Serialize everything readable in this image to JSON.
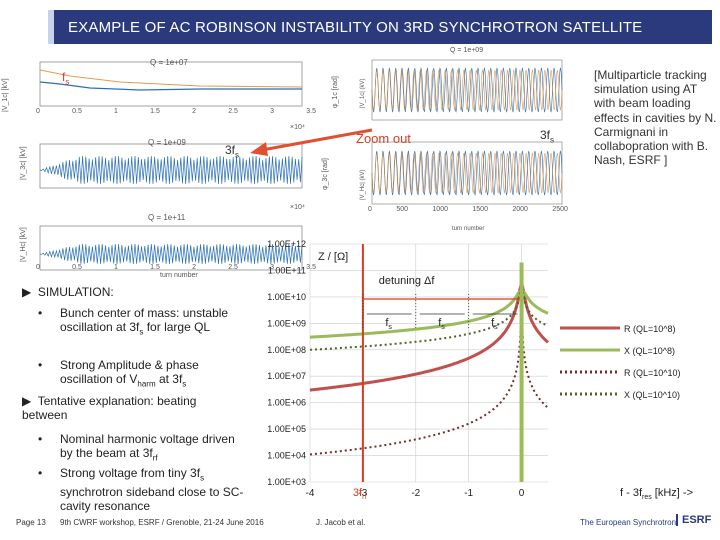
{
  "slide": {
    "title": "EXAMPLE OF AC ROBINSON INSTABILITY ON 3RD SYNCHROTRON SATELLITE",
    "note": "[Multiparticle tracking simulation using AT with beam loading effects in cavities by N. Carmignani in collabopration with B. Nash, ESRF ]",
    "zoom_out": "Zoom out",
    "three_fs_a": "3f",
    "three_fs_b": "3f",
    "fs_top": "f",
    "sub_s": "s"
  },
  "plots": {
    "p1_title": "Q = 1e+07",
    "p2_title": "Q = 1e+09",
    "p3_title": "Q = 1e+11",
    "zoom_title": "Q = 1e+09",
    "xlabel": "turn number",
    "zoom_xlabel": "turn number",
    "p1_ylabel": "|V_1c| [kV]",
    "p2_ylabel": "|V_3c| [kV]",
    "p3_ylabel": "|V_Hc| [kV]",
    "p1_rylabel": "φ_1c [rad]",
    "p2_rylabel": "φ_3c [rad]",
    "exp4": "×10⁴",
    "zoom_ylabel_top": "|V_1c| (kV)",
    "zoom_ylabel_bot": "|V_Hc| (kV)",
    "x_ticks": [
      "0",
      "0.5",
      "1",
      "1.5",
      "2",
      "2.5",
      "3",
      "3.5"
    ],
    "zoom_x_ticks": [
      "0",
      "500",
      "1000",
      "1500",
      "2000",
      "2500"
    ]
  },
  "bullets": {
    "simulation": "SIMULATION:",
    "b1a": "Bunch center of mass: unstable oscillation at 3f",
    "b1b": " for large QL",
    "b2a": "Strong Amplitude & phase oscillation of V",
    "b2_sub": "harm",
    "b2b": " at 3f",
    "tentative": "Tentative explanation: beating between",
    "b3a": "Nominal harmonic voltage driven by the beam at 3f",
    "b3_sub": "rf",
    "b4a": "Strong voltage from tiny 3f",
    "b4b": " synchrotron sideband close to SC-cavity resonance"
  },
  "footer": {
    "page": "Page 13",
    "workshop": "9th CWRF workshop, ESRF / Grenoble, 21-24 June 2016",
    "author": "J. Jacob et al.",
    "org": "The European Synchrotron",
    "logo": "ESRF"
  },
  "chart_data": {
    "type": "line",
    "title": "",
    "ylabel": "Z / [Ω]",
    "xlabel": "f - 3f",
    "xlabel_sub": "res",
    "xlabel_unit": " [kHz] ->",
    "y_log": true,
    "ylim": [
      1000,
      1000000000000
    ],
    "xlim": [
      -4,
      0.5
    ],
    "y_ticks": [
      "1.00E+12",
      "1.00E+11",
      "1.00E+10",
      "1.00E+09",
      "1.00E+08",
      "1.00E+07",
      "1.00E+06",
      "1.00E+05",
      "1.00E+04",
      "1.00E+03"
    ],
    "x_ticks": [
      "-4",
      "-3",
      "-2",
      "-1",
      "0"
    ],
    "x_tick_values": [
      -4,
      -3,
      -2,
      -1,
      0
    ],
    "rf_marker": "3f",
    "rf_marker_sub": "rf",
    "detuning_label": "detuning Δf",
    "fs_marks": [
      -3,
      -2,
      -1
    ],
    "fs_label": "f",
    "fs_sub": "s",
    "series": [
      {
        "name": "R (QL=10^8)",
        "color": "#c0504d",
        "style": "solid"
      },
      {
        "name": "X (QL=10^8)",
        "color": "#9bbb59",
        "style": "solid"
      },
      {
        "name": "R (QL=10^10)",
        "color": "#7b2a2a",
        "style": "dotted"
      },
      {
        "name": "X (QL=10^10)",
        "color": "#4f6228",
        "style": "dotted"
      }
    ]
  }
}
